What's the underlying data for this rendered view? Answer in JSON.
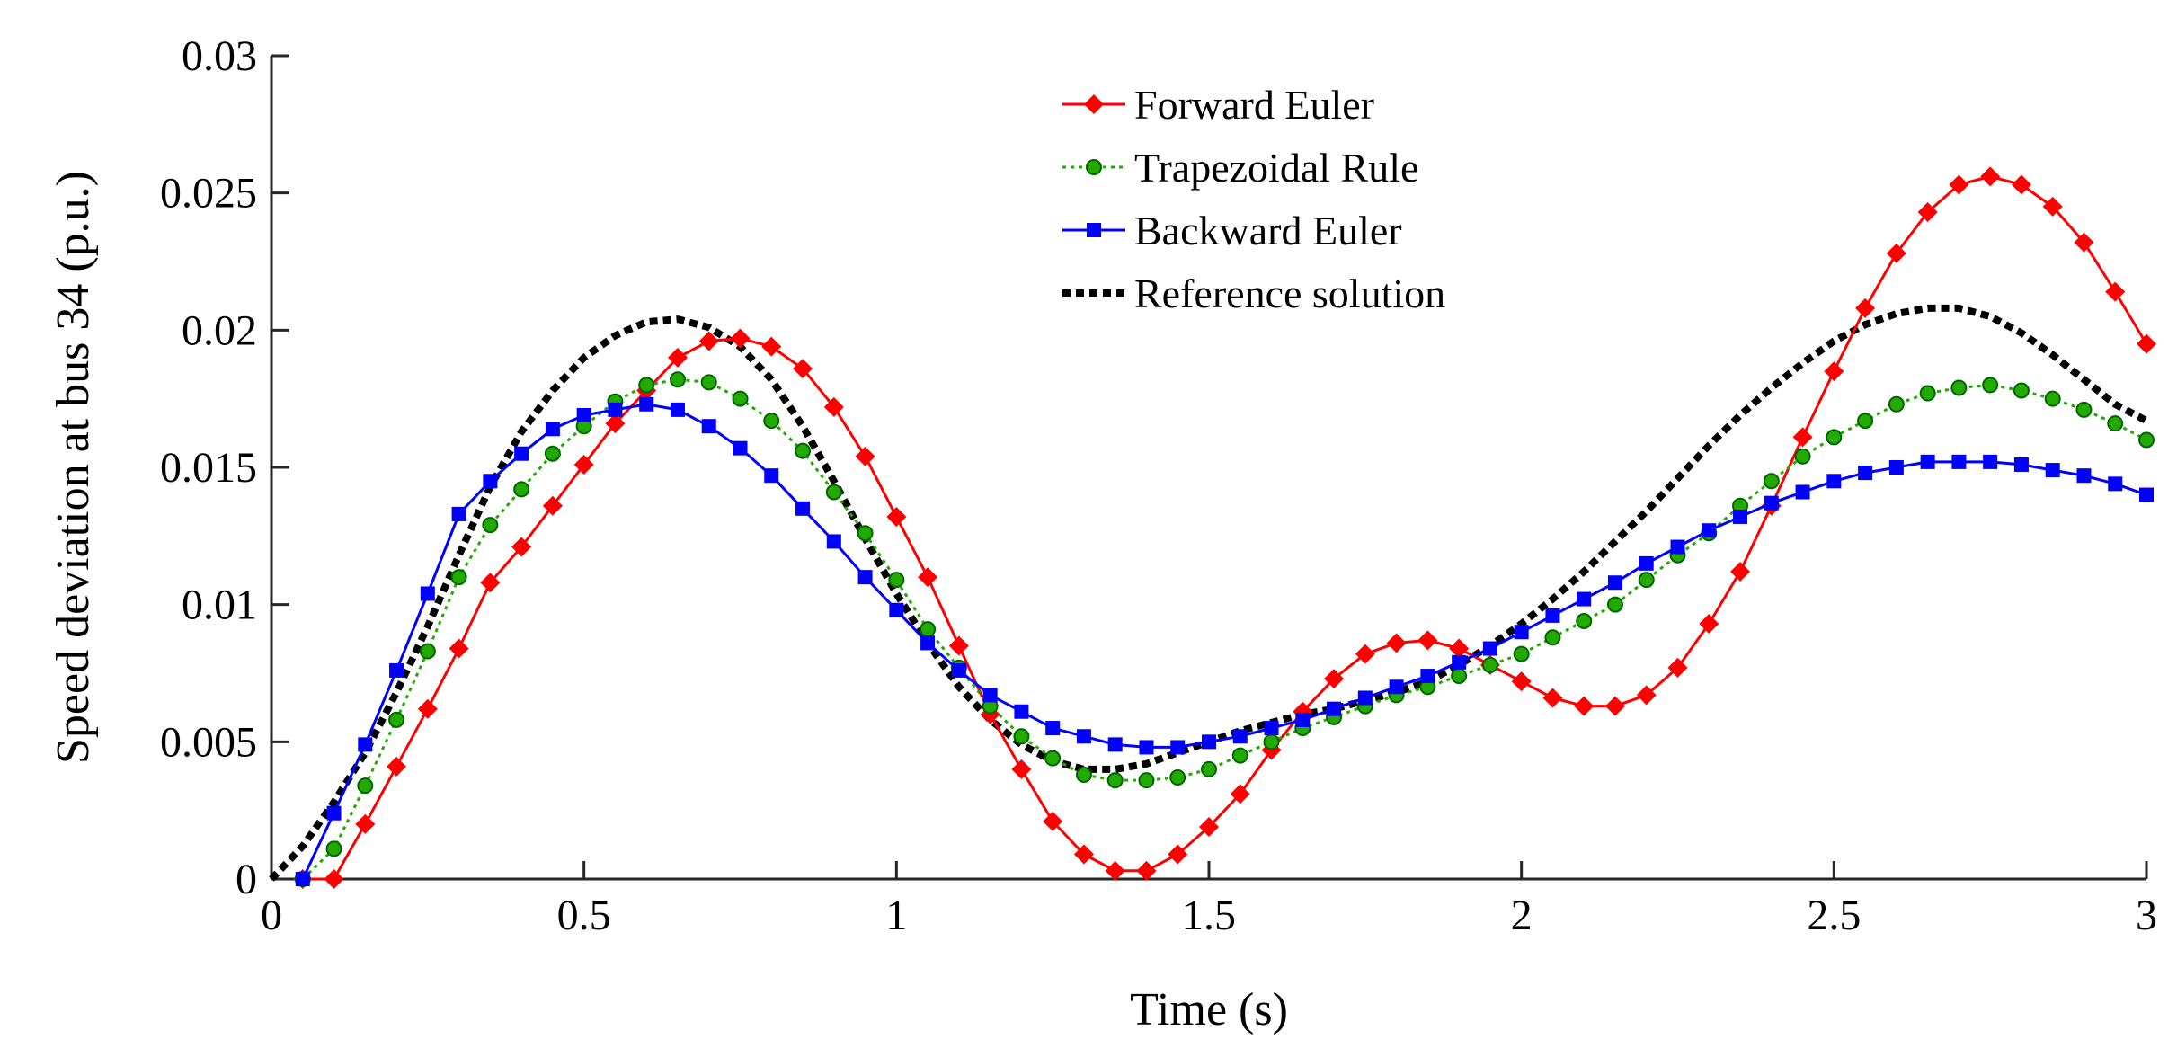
{
  "chart_data": {
    "type": "line",
    "title": "",
    "xlabel": "Time (s)",
    "ylabel": "Speed deviation at bus 34 (p.u.)",
    "xlim": [
      0,
      3
    ],
    "ylim": [
      0,
      0.03
    ],
    "xticks": [
      0,
      0.5,
      1,
      1.5,
      2,
      2.5,
      3
    ],
    "xtick_labels": [
      "0",
      "0.5",
      "1",
      "1.5",
      "2",
      "2.5",
      "3"
    ],
    "yticks": [
      0,
      0.005,
      0.01,
      0.015,
      0.02,
      0.025,
      0.03
    ],
    "ytick_labels": [
      "0",
      "0.005",
      "0.01",
      "0.015",
      "0.02",
      "0.025",
      "0.03"
    ],
    "grid": false,
    "legend_position": "top-center",
    "series": [
      {
        "name": "Forward Euler",
        "color": "#ff0000",
        "line_style": "solid",
        "marker": "diamond",
        "x": [
          0.05,
          0.1,
          0.15,
          0.2,
          0.25,
          0.3,
          0.35,
          0.4,
          0.45,
          0.5,
          0.55,
          0.6,
          0.65,
          0.7,
          0.75,
          0.8,
          0.85,
          0.9,
          0.95,
          1.0,
          1.05,
          1.1,
          1.15,
          1.2,
          1.25,
          1.3,
          1.35,
          1.4,
          1.45,
          1.5,
          1.55,
          1.6,
          1.65,
          1.7,
          1.75,
          1.8,
          1.85,
          1.9,
          1.95,
          2.0,
          2.05,
          2.1,
          2.15,
          2.2,
          2.25,
          2.3,
          2.35,
          2.4,
          2.45,
          2.5,
          2.55,
          2.6,
          2.65,
          2.7,
          2.75,
          2.8,
          2.85,
          2.9,
          2.95,
          3.0
        ],
        "y": [
          0,
          0,
          0.002,
          0.0041,
          0.0062,
          0.0084,
          0.0108,
          0.0121,
          0.0136,
          0.0151,
          0.0166,
          0.0178,
          0.019,
          0.0196,
          0.0197,
          0.0194,
          0.0186,
          0.0172,
          0.0154,
          0.0132,
          0.011,
          0.0085,
          0.006,
          0.004,
          0.0021,
          0.0009,
          0.0003,
          0.0003,
          0.0009,
          0.0019,
          0.0031,
          0.0047,
          0.0061,
          0.0073,
          0.0082,
          0.0086,
          0.0087,
          0.0084,
          0.0078,
          0.0072,
          0.0066,
          0.0063,
          0.0063,
          0.0067,
          0.0077,
          0.0093,
          0.0112,
          0.0136,
          0.0161,
          0.0185,
          0.0208,
          0.0228,
          0.0243,
          0.0253,
          0.0256,
          0.0253,
          0.0245,
          0.0232,
          0.0214,
          0.0195
        ]
      },
      {
        "name": "Trapezoidal Rule",
        "color": "#22aa00",
        "line_style": "dotted",
        "marker": "circle",
        "x": [
          0.05,
          0.1,
          0.15,
          0.2,
          0.25,
          0.3,
          0.35,
          0.4,
          0.45,
          0.5,
          0.55,
          0.6,
          0.65,
          0.7,
          0.75,
          0.8,
          0.85,
          0.9,
          0.95,
          1.0,
          1.05,
          1.1,
          1.15,
          1.2,
          1.25,
          1.3,
          1.35,
          1.4,
          1.45,
          1.5,
          1.55,
          1.6,
          1.65,
          1.7,
          1.75,
          1.8,
          1.85,
          1.9,
          1.95,
          2.0,
          2.05,
          2.1,
          2.15,
          2.2,
          2.25,
          2.3,
          2.35,
          2.4,
          2.45,
          2.5,
          2.55,
          2.6,
          2.65,
          2.7,
          2.75,
          2.8,
          2.85,
          2.9,
          2.95,
          3.0
        ],
        "y": [
          0,
          0.0011,
          0.0034,
          0.0058,
          0.0083,
          0.011,
          0.0129,
          0.0142,
          0.0155,
          0.0165,
          0.0174,
          0.018,
          0.0182,
          0.0181,
          0.0175,
          0.0167,
          0.0156,
          0.0141,
          0.0126,
          0.0109,
          0.0091,
          0.0077,
          0.0063,
          0.0052,
          0.0044,
          0.0038,
          0.0036,
          0.0036,
          0.0037,
          0.004,
          0.0045,
          0.005,
          0.0055,
          0.0059,
          0.0063,
          0.0067,
          0.007,
          0.0074,
          0.0078,
          0.0082,
          0.0088,
          0.0094,
          0.01,
          0.0109,
          0.0118,
          0.0126,
          0.0136,
          0.0145,
          0.0154,
          0.0161,
          0.0167,
          0.0173,
          0.0177,
          0.0179,
          0.018,
          0.0178,
          0.0175,
          0.0171,
          0.0166,
          0.016
        ]
      },
      {
        "name": "Backward Euler",
        "color": "#0000ff",
        "line_style": "solid",
        "marker": "square",
        "x": [
          0.05,
          0.1,
          0.15,
          0.2,
          0.25,
          0.3,
          0.35,
          0.4,
          0.45,
          0.5,
          0.55,
          0.6,
          0.65,
          0.7,
          0.75,
          0.8,
          0.85,
          0.9,
          0.95,
          1.0,
          1.05,
          1.1,
          1.15,
          1.2,
          1.25,
          1.3,
          1.35,
          1.4,
          1.45,
          1.5,
          1.55,
          1.6,
          1.65,
          1.7,
          1.75,
          1.8,
          1.85,
          1.9,
          1.95,
          2.0,
          2.05,
          2.1,
          2.15,
          2.2,
          2.25,
          2.3,
          2.35,
          2.4,
          2.45,
          2.5,
          2.55,
          2.6,
          2.65,
          2.7,
          2.75,
          2.8,
          2.85,
          2.9,
          2.95,
          3.0
        ],
        "y": [
          0,
          0.0024,
          0.0049,
          0.0076,
          0.0104,
          0.0133,
          0.0145,
          0.0155,
          0.0164,
          0.0169,
          0.0171,
          0.0173,
          0.0171,
          0.0165,
          0.0157,
          0.0147,
          0.0135,
          0.0123,
          0.011,
          0.0098,
          0.0086,
          0.0076,
          0.0067,
          0.0061,
          0.0055,
          0.0052,
          0.0049,
          0.0048,
          0.0048,
          0.005,
          0.0052,
          0.0055,
          0.0058,
          0.0062,
          0.0066,
          0.007,
          0.0074,
          0.0079,
          0.0084,
          0.009,
          0.0096,
          0.0102,
          0.0108,
          0.0115,
          0.0121,
          0.0127,
          0.0132,
          0.0137,
          0.0141,
          0.0145,
          0.0148,
          0.015,
          0.0152,
          0.0152,
          0.0152,
          0.0151,
          0.0149,
          0.0147,
          0.0144,
          0.014
        ]
      },
      {
        "name": "Reference solution",
        "color": "#000000",
        "line_style": "dashed",
        "marker": "none",
        "x": [
          0,
          0.05,
          0.1,
          0.15,
          0.2,
          0.25,
          0.3,
          0.35,
          0.4,
          0.45,
          0.5,
          0.55,
          0.6,
          0.65,
          0.7,
          0.75,
          0.8,
          0.85,
          0.9,
          0.95,
          1.0,
          1.05,
          1.1,
          1.15,
          1.2,
          1.25,
          1.3,
          1.35,
          1.4,
          1.45,
          1.5,
          1.55,
          1.6,
          1.65,
          1.7,
          1.75,
          1.8,
          1.85,
          1.9,
          1.95,
          2.0,
          2.05,
          2.1,
          2.15,
          2.2,
          2.25,
          2.3,
          2.35,
          2.4,
          2.45,
          2.5,
          2.55,
          2.6,
          2.65,
          2.7,
          2.75,
          2.8,
          2.85,
          2.9,
          2.95,
          3.0
        ],
        "y": [
          0,
          0.0012,
          0.0028,
          0.0046,
          0.0068,
          0.0092,
          0.0118,
          0.0143,
          0.0163,
          0.0178,
          0.019,
          0.0198,
          0.0203,
          0.0204,
          0.0201,
          0.0194,
          0.0182,
          0.0165,
          0.0145,
          0.0124,
          0.0104,
          0.0086,
          0.007,
          0.0058,
          0.0049,
          0.0043,
          0.004,
          0.004,
          0.0042,
          0.0046,
          0.005,
          0.0054,
          0.0057,
          0.006,
          0.0062,
          0.0065,
          0.0068,
          0.0072,
          0.0078,
          0.0085,
          0.0093,
          0.0102,
          0.0112,
          0.0123,
          0.0134,
          0.0146,
          0.0158,
          0.0169,
          0.0179,
          0.0188,
          0.0196,
          0.0202,
          0.0206,
          0.0208,
          0.0208,
          0.0205,
          0.0199,
          0.0191,
          0.0182,
          0.0173,
          0.0167
        ]
      }
    ]
  }
}
